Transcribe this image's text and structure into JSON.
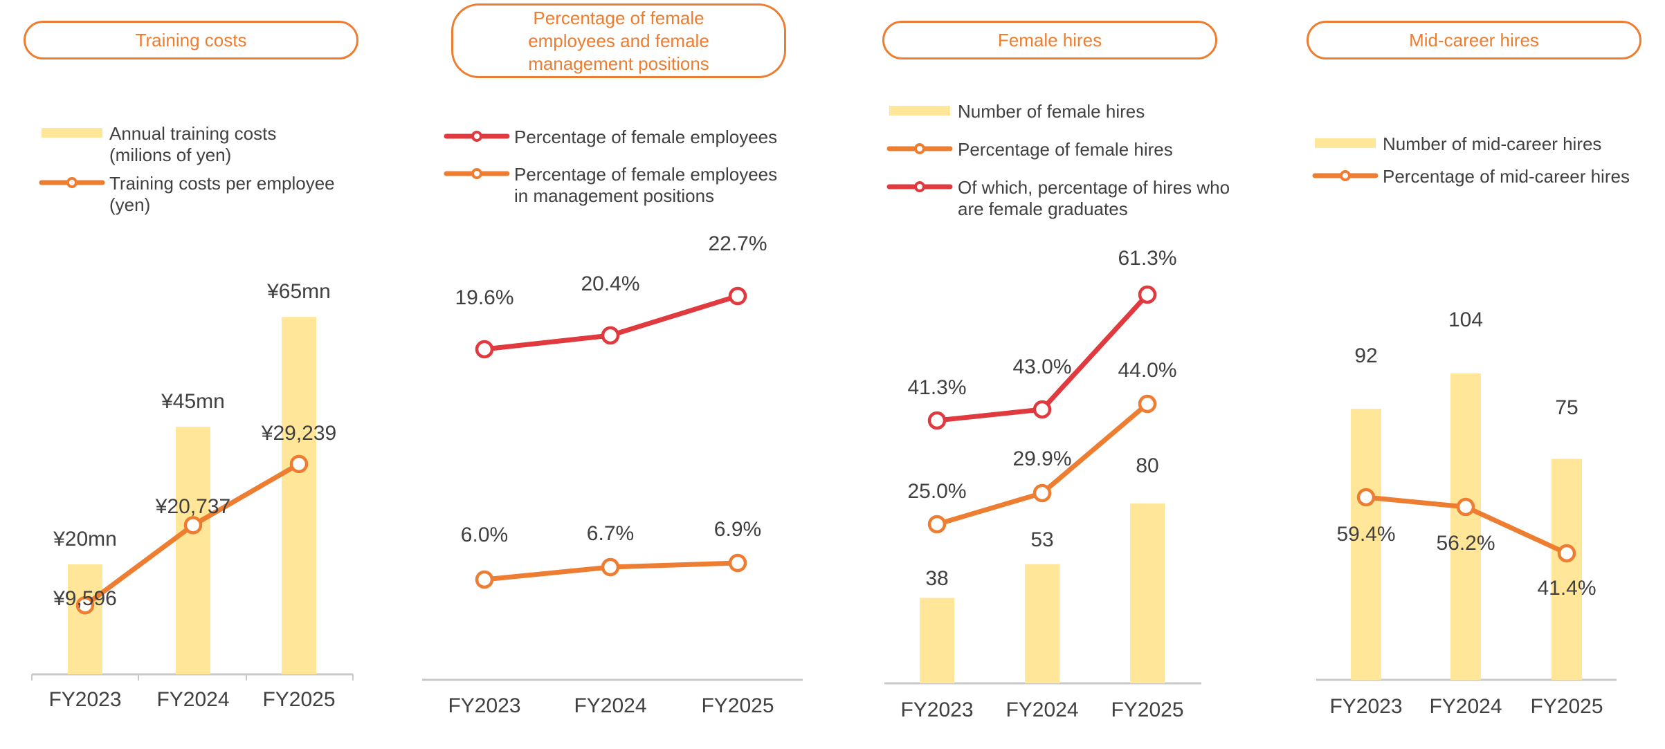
{
  "colors": {
    "bar": "#FFE699",
    "orange": "#ED7D31",
    "red": "#E0393E",
    "axis": "#C9C9C9",
    "text": "#404040"
  },
  "chart_data": [
    {
      "type": "bar",
      "title": "Training costs",
      "categories": [
        "FY2023",
        "FY2024",
        "FY2025"
      ],
      "legend": [
        "Annual training costs\n(milions of yen)",
        "Training costs per employee\n(yen)"
      ],
      "series": [
        {
          "name": "Annual training costs (milions of yen)",
          "type": "bar",
          "values": [
            20,
            45,
            65
          ],
          "labels": [
            "¥20mn",
            "¥45mn",
            "¥65mn"
          ],
          "color": "#FFE699"
        },
        {
          "name": "Training costs per employee (yen)",
          "type": "line",
          "values": [
            9596,
            20737,
            29239
          ],
          "labels": [
            "¥9,596",
            "¥20,737",
            "¥29,239"
          ],
          "color": "#ED7D31"
        }
      ]
    },
    {
      "type": "line",
      "title": "Percentage of female employees and female management positions",
      "categories": [
        "FY2023",
        "FY2024",
        "FY2025"
      ],
      "legend": [
        "Percentage of female employees",
        "Percentage of female employees\nin management positions"
      ],
      "series": [
        {
          "name": "Percentage of female employees",
          "type": "line",
          "values": [
            19.6,
            20.4,
            22.7
          ],
          "labels": [
            "19.6%",
            "20.4%",
            "22.7%"
          ],
          "color": "#E0393E"
        },
        {
          "name": "Percentage of female employees in management positions",
          "type": "line",
          "values": [
            6.0,
            6.7,
            6.9
          ],
          "labels": [
            "6.0%",
            "6.7%",
            "6.9%"
          ],
          "color": "#ED7D31"
        }
      ]
    },
    {
      "type": "bar",
      "title": "Female hires",
      "categories": [
        "FY2023",
        "FY2024",
        "FY2025"
      ],
      "legend": [
        "Number of female hires",
        "Percentage of female hires",
        "Of which, percentage of hires who\nare female graduates"
      ],
      "series": [
        {
          "name": "Number of female hires",
          "type": "bar",
          "values": [
            38,
            53,
            80
          ],
          "labels": [
            "38",
            "53",
            "80"
          ],
          "color": "#FFE699"
        },
        {
          "name": "Percentage of female hires",
          "type": "line",
          "values": [
            25.0,
            29.9,
            44.0
          ],
          "labels": [
            "25.0%",
            "29.9%",
            "44.0%"
          ],
          "color": "#ED7D31"
        },
        {
          "name": "Of which, percentage of hires who are female graduates",
          "type": "line",
          "values": [
            41.3,
            43.0,
            61.3
          ],
          "labels": [
            "41.3%",
            "43.0%",
            "61.3%"
          ],
          "color": "#E0393E"
        }
      ]
    },
    {
      "type": "bar",
      "title": "Mid-career hires",
      "categories": [
        "FY2023",
        "FY2024",
        "FY2025"
      ],
      "legend": [
        "Number of mid-career hires",
        "Percentage of mid-career hires"
      ],
      "series": [
        {
          "name": "Number of mid-career hires",
          "type": "bar",
          "values": [
            92,
            104,
            75
          ],
          "labels": [
            "92",
            "104",
            "75"
          ],
          "color": "#FFE699"
        },
        {
          "name": "Percentage of mid-career hires",
          "type": "line",
          "values": [
            59.4,
            56.2,
            41.4
          ],
          "labels": [
            "59.4%",
            "56.2%",
            "41.4%"
          ],
          "color": "#ED7D31"
        }
      ]
    }
  ]
}
